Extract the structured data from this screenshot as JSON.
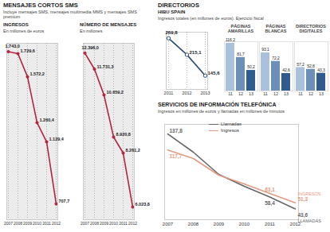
{
  "chart_data": [
    {
      "type": "line",
      "heading": "MENSAJES CORTOS SMS",
      "heading_subtitle": "Incluye mensajes SMS, mensajes multimedia MMS y mensajes SMS premium",
      "title": "INGRESOS",
      "subtitle": "En millones de euros",
      "categories": [
        "2007",
        "2008",
        "2009",
        "2010",
        "2011",
        "2012"
      ],
      "values": [
        1743.0,
        1729.6,
        1572.2,
        1260.4,
        1129.4,
        707.7
      ],
      "value_labels": [
        "1.743,0",
        "1.729,6",
        "1.572,2",
        "1.260,4",
        "1.129,4",
        "707,7"
      ],
      "color": "#b3253f",
      "marker": "dot",
      "ylim": [
        600,
        1800
      ],
      "grid": true,
      "data_labels": true,
      "tick_labels": "x"
    },
    {
      "type": "line",
      "title": "NÚMERO DE MENSAJES",
      "subtitle": "En millones",
      "categories": [
        "2007",
        "2008",
        "2009",
        "2010",
        "2011",
        "2012"
      ],
      "values": [
        12396.0,
        11731.3,
        10659.2,
        8920.8,
        8261.2,
        6023.8
      ],
      "value_labels": [
        "12.396,0",
        "11.731,3",
        "10.659,2",
        "8.920,8",
        "8.261,2",
        "6.023,8"
      ],
      "color": "#b3253f",
      "marker": "dot",
      "ylim": [
        5500,
        12800
      ],
      "grid": true,
      "data_labels": true,
      "tick_labels": "x"
    },
    {
      "type": "line",
      "heading": "DIRECTORIOS",
      "title": "HIBU SPAIN",
      "subtitle": "Ingresos totales (en millones de euros). Ejercicio fiscal",
      "categories": [
        "2011",
        "2012",
        "2013"
      ],
      "values": [
        269.8,
        215.1,
        145.6
      ],
      "value_labels": [
        "269,8",
        "215,1",
        "145,6"
      ],
      "color": "#274b7a",
      "marker": "circle",
      "ylim": [
        100,
        290
      ],
      "grid": true,
      "data_labels": true,
      "tick_labels": "x"
    },
    {
      "type": "bar",
      "title": "PÁGINAS AMARILLAS",
      "categories": [
        "11",
        "12",
        "13"
      ],
      "values": [
        116.2,
        81.7,
        50.2
      ],
      "value_labels": [
        "116,2",
        "81,7",
        "50,2"
      ],
      "colors": [
        "#a9c1da",
        "#6b8fb8",
        "#2f5b8e"
      ],
      "ylim": [
        0,
        120
      ],
      "data_labels": true,
      "tick_labels": "x"
    },
    {
      "type": "bar",
      "title": "PÁGINAS BLANCAS",
      "categories": [
        "11",
        "12",
        "13"
      ],
      "values": [
        93.1,
        72.2,
        42.6
      ],
      "value_labels": [
        "93,1",
        "72,2",
        "42,6"
      ],
      "colors": [
        "#a9c1da",
        "#6b8fb8",
        "#2f5b8e"
      ],
      "ylim": [
        0,
        120
      ],
      "data_labels": true,
      "tick_labels": "x"
    },
    {
      "type": "bar",
      "title": "DIRECTORIOS DIGITALES",
      "categories": [
        "11",
        "12",
        "13"
      ],
      "values": [
        57.2,
        52.8,
        43.3
      ],
      "value_labels": [
        "57,2",
        "52,8",
        "43,3"
      ],
      "colors": [
        "#a9c1da",
        "#6b8fb8",
        "#2f5b8e"
      ],
      "ylim": [
        0,
        120
      ],
      "data_labels": true,
      "tick_labels": "x"
    },
    {
      "type": "line",
      "title": "SERVICIOS DE INFORMACIÓN TELEFÓNICA",
      "subtitle": "Ingresos en millones de euros y llamadas en millones de minutos",
      "categories": [
        "2007",
        "2008",
        "2009",
        "2010",
        "2011",
        "2012"
      ],
      "series": [
        {
          "name": "Llamadas",
          "color": "#666666",
          "values": [
            137.8,
            115,
            87,
            72,
            58.4,
            43.6
          ],
          "value_labels": [
            "137,8",
            null,
            null,
            null,
            "58,4",
            "43,6"
          ]
        },
        {
          "name": "Ingresos",
          "color": "#e39b80",
          "values": [
            117.7,
            107,
            86,
            75,
            63.1,
            51.3
          ],
          "value_labels": [
            "117,7",
            null,
            null,
            null,
            "63,1",
            "51,3"
          ]
        }
      ],
      "annotations": [
        {
          "text": "INGRESOS",
          "series": "Ingresos"
        },
        {
          "text": "LLAMADAS",
          "series": "Llamadas"
        }
      ],
      "legend": "top",
      "ylim": [
        30,
        150
      ],
      "data_labels": true,
      "tick_labels": "x"
    }
  ]
}
